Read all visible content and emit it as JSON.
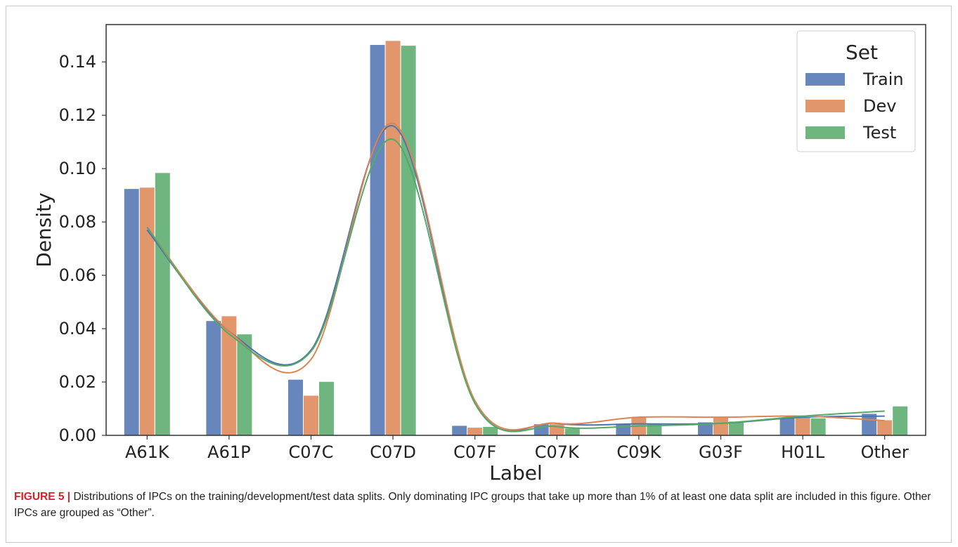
{
  "chart_data": {
    "type": "bar",
    "title": "",
    "xlabel": "Label",
    "ylabel": "Density",
    "ylim": [
      0,
      0.154
    ],
    "yticks": [
      "0.00",
      "0.02",
      "0.04",
      "0.06",
      "0.08",
      "0.10",
      "0.12",
      "0.14"
    ],
    "grid": false,
    "categories": [
      "A61K",
      "A61P",
      "C07C",
      "C07D",
      "C07F",
      "C07K",
      "C09K",
      "G03F",
      "H01L",
      "Other"
    ],
    "legend": {
      "title": "Set",
      "placement": "top-right"
    },
    "series": [
      {
        "name": "Train",
        "color": "#4c72b0",
        "values": [
          0.0925,
          0.043,
          0.021,
          0.1465,
          0.0037,
          0.0043,
          0.0045,
          0.005,
          0.0068,
          0.0082
        ],
        "kde": [
          0.077,
          0.039,
          0.032,
          0.116,
          0.012,
          0.0045,
          0.0043,
          0.0045,
          0.0068,
          0.0072
        ]
      },
      {
        "name": "Dev",
        "color": "#dd8452",
        "values": [
          0.093,
          0.0448,
          0.015,
          0.148,
          0.003,
          0.0043,
          0.0068,
          0.0068,
          0.0072,
          0.0058
        ],
        "kde": [
          0.078,
          0.039,
          0.0285,
          0.117,
          0.013,
          0.0045,
          0.0068,
          0.0068,
          0.0072,
          0.0055
        ]
      },
      {
        "name": "Test",
        "color": "#55a868",
        "values": [
          0.0985,
          0.038,
          0.0202,
          0.1462,
          0.0033,
          0.0027,
          0.0043,
          0.0053,
          0.0065,
          0.011
        ],
        "kde": [
          0.078,
          0.038,
          0.0315,
          0.111,
          0.012,
          0.0033,
          0.0035,
          0.0045,
          0.0072,
          0.0091
        ]
      }
    ]
  },
  "caption": {
    "label": "FIGURE 5 |",
    "text": " Distributions of IPCs on the training/development/test data splits. Only dominating IPC groups that take up more than 1% of at least one data split are included in this figure. Other IPCs are grouped as “Other”."
  }
}
